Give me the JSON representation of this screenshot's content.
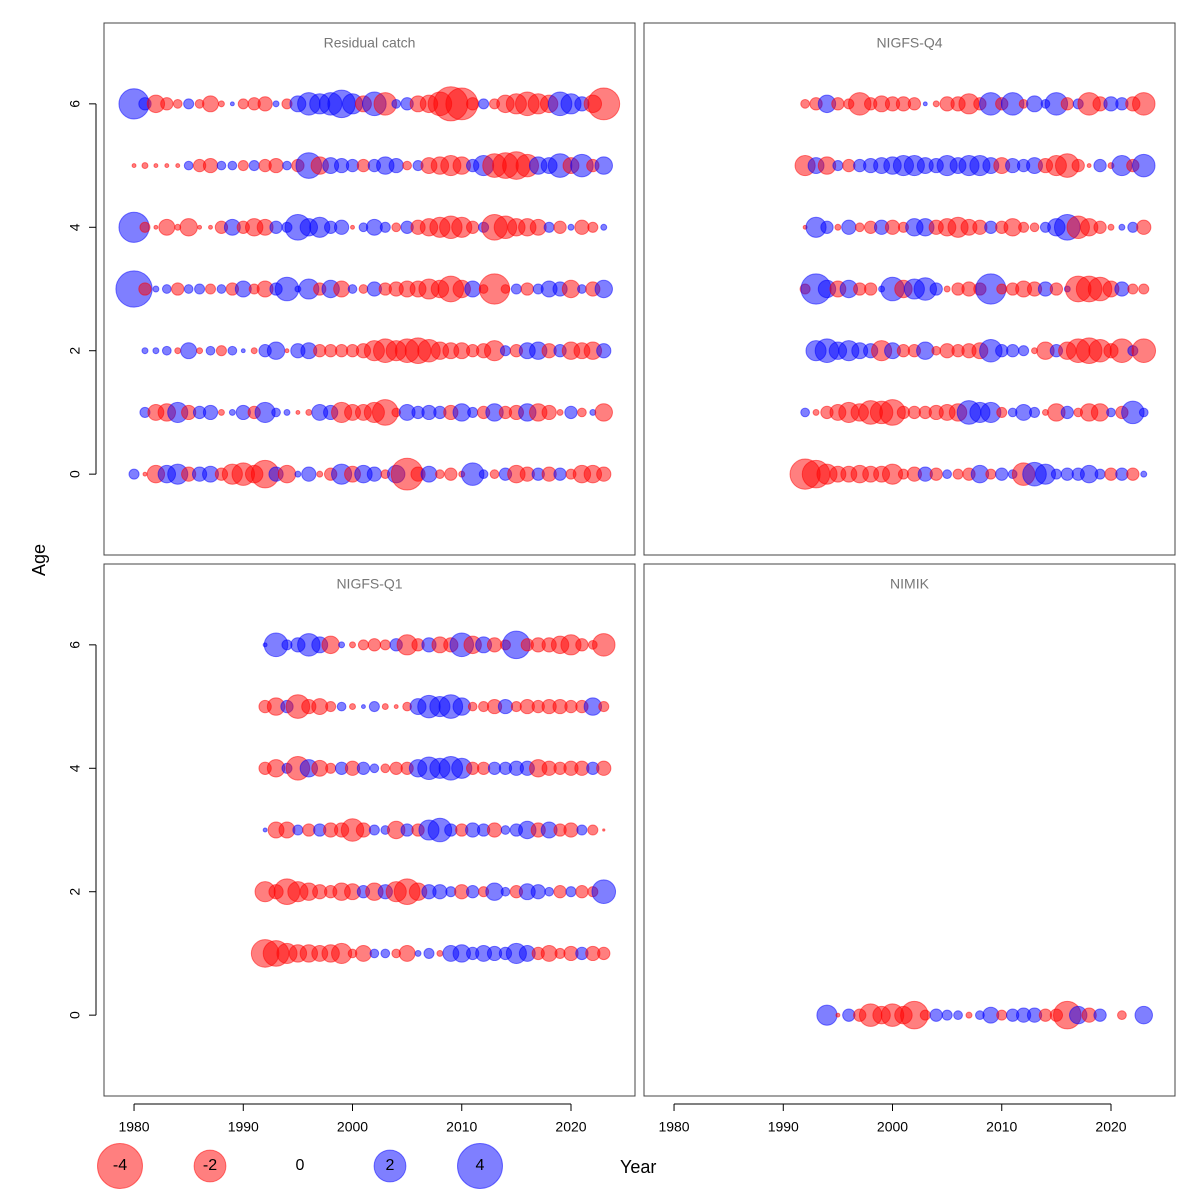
{
  "chart_data": [
    {
      "type": "bubble",
      "title": "Residual catch",
      "x": [
        1980,
        1981,
        1982,
        1983,
        1984,
        1985,
        1986,
        1987,
        1988,
        1989,
        1990,
        1991,
        1992,
        1993,
        1994,
        1995,
        1996,
        1997,
        1998,
        1999,
        2000,
        2001,
        2002,
        2003,
        2004,
        2005,
        2006,
        2007,
        2008,
        2009,
        2010,
        2011,
        2012,
        2013,
        2014,
        2015,
        2016,
        2017,
        2018,
        2019,
        2020,
        2021,
        2022,
        2023
      ],
      "y": [
        0,
        1,
        2,
        3,
        4,
        5,
        6
      ],
      "values": [
        [
          0.2,
          -0.03,
          -0.6,
          0.6,
          0.8,
          -0.4,
          0.4,
          0.5,
          -0.3,
          -0.8,
          -1.0,
          -0.6,
          -1.5,
          0.4,
          -0.6,
          0.07,
          0.4,
          -0.07,
          -0.3,
          0.8,
          -0.5,
          0.6,
          0.4,
          -0.15,
          0.6,
          -2.0,
          -0.4,
          0.5,
          -0.15,
          -0.3,
          -0.07,
          1.0,
          0.15,
          -0.15,
          0.3,
          -0.6,
          -0.4,
          0.3,
          -0.4,
          0.3,
          -0.2,
          -0.6,
          -0.6,
          -0.4
        ],
        [
          null,
          0.2,
          -0.5,
          -0.6,
          0.8,
          -0.4,
          0.3,
          0.4,
          -0.07,
          0.07,
          0.4,
          -0.3,
          0.8,
          0.15,
          0.07,
          -0.03,
          -0.07,
          0.5,
          0.4,
          -0.8,
          -0.5,
          -0.5,
          -0.8,
          -1.3,
          -0.15,
          0.5,
          0.3,
          0.4,
          0.3,
          -0.4,
          0.6,
          0.2,
          -0.3,
          0.6,
          -0.3,
          -0.4,
          0.6,
          -0.6,
          -0.4,
          -0.07,
          0.3,
          -0.15,
          0.07,
          -0.6
        ],
        [
          null,
          0.07,
          0.07,
          0.15,
          -0.07,
          0.5,
          -0.07,
          0.15,
          -0.2,
          0.15,
          0.03,
          -0.07,
          0.3,
          0.6,
          -0.03,
          0.4,
          0.5,
          -0.3,
          -0.3,
          -0.3,
          -0.3,
          -0.4,
          -0.8,
          -1.1,
          -0.8,
          -1.1,
          -1.3,
          -1.0,
          -0.6,
          -0.5,
          -0.5,
          -0.3,
          -0.4,
          -0.8,
          0.2,
          -0.3,
          0.5,
          0.6,
          -0.4,
          0.3,
          -0.6,
          -0.5,
          -0.6,
          0.4
        ],
        [
          2.6,
          -0.3,
          0.07,
          0.15,
          -0.3,
          0.15,
          0.2,
          -0.2,
          0.15,
          -0.3,
          0.5,
          -0.2,
          -0.5,
          0.3,
          1.1,
          0.07,
          0.8,
          -0.3,
          0.6,
          -0.5,
          0.15,
          -0.15,
          0.4,
          -0.3,
          -0.4,
          -0.5,
          -0.5,
          -0.8,
          -0.6,
          -1.3,
          -0.6,
          0.5,
          -0.15,
          -1.8,
          -0.15,
          0.2,
          -0.3,
          0.2,
          0.5,
          0.4,
          -0.6,
          0.15,
          -0.4,
          0.6
        ],
        [
          1.8,
          -0.2,
          -0.03,
          -0.5,
          -0.07,
          -0.6,
          -0.03,
          -0.03,
          -0.3,
          0.5,
          -0.3,
          -0.6,
          -0.5,
          0.3,
          0.2,
          1.3,
          0.6,
          0.8,
          0.3,
          0.4,
          -0.03,
          0.15,
          0.5,
          0.2,
          -0.15,
          0.3,
          -0.4,
          -0.6,
          -0.8,
          -1.0,
          -0.8,
          -0.3,
          0.2,
          -1.3,
          -1.0,
          -0.6,
          -0.6,
          -0.5,
          0.2,
          -0.3,
          0.07,
          -0.4,
          -0.2,
          0.07
        ],
        [
          -0.03,
          -0.07,
          -0.03,
          -0.03,
          -0.03,
          0.15,
          -0.3,
          -0.4,
          0.15,
          0.15,
          -0.2,
          0.2,
          -0.3,
          -0.4,
          0.15,
          -0.3,
          1.3,
          -0.6,
          0.5,
          0.4,
          0.3,
          -0.3,
          0.3,
          0.6,
          0.4,
          -0.15,
          0.2,
          -0.5,
          -0.6,
          -0.8,
          -0.6,
          0.3,
          0.8,
          -1.1,
          -1.3,
          -1.5,
          -1.0,
          0.6,
          0.5,
          1.1,
          -0.5,
          1.0,
          -0.3,
          0.6
        ],
        [
          1.8,
          0.3,
          -0.6,
          -0.3,
          -0.15,
          0.2,
          -0.15,
          -0.5,
          -0.07,
          0.03,
          -0.2,
          -0.3,
          -0.4,
          0.07,
          -0.2,
          0.5,
          1.0,
          0.8,
          1.0,
          1.5,
          0.8,
          -0.5,
          1.1,
          -1.0,
          0.15,
          0.3,
          -0.5,
          -0.6,
          -1.1,
          -2.3,
          -2.0,
          -0.3,
          0.2,
          -0.2,
          -0.6,
          -0.8,
          -1.1,
          -0.8,
          -0.6,
          1.1,
          0.8,
          0.4,
          -0.6,
          -2.0
        ]
      ],
      "xlim": [
        1977.25,
        2025.86
      ],
      "ylim": [
        -1.31,
        7.31
      ],
      "yticks": [
        0,
        2,
        4,
        6
      ]
    },
    {
      "type": "bubble",
      "title": "NIGFS-Q4",
      "x": [
        1992,
        1993,
        1994,
        1995,
        1996,
        1997,
        1998,
        1999,
        2000,
        2001,
        2002,
        2003,
        2004,
        2005,
        2006,
        2007,
        2008,
        2009,
        2010,
        2011,
        2012,
        2013,
        2014,
        2015,
        2016,
        2017,
        2018,
        2019,
        2020,
        2021,
        2022,
        2023
      ],
      "y": [
        0,
        1,
        2,
        3,
        4,
        5,
        6
      ],
      "values": [
        [
          -1.8,
          -1.5,
          -0.8,
          -0.5,
          -0.5,
          -0.6,
          -0.5,
          -0.5,
          -0.8,
          -0.2,
          -0.4,
          0.4,
          -0.3,
          0.15,
          -0.2,
          -0.3,
          0.6,
          -0.2,
          0.3,
          0.15,
          -1.0,
          1.1,
          0.8,
          0.2,
          0.3,
          0.3,
          0.6,
          0.2,
          -0.3,
          0.3,
          -0.3,
          0.07
        ],
        [
          0.15,
          -0.07,
          -0.3,
          -0.5,
          -0.8,
          -0.6,
          -1.1,
          -1.0,
          -1.3,
          -0.3,
          -0.3,
          -0.3,
          -0.4,
          -0.5,
          -0.6,
          1.1,
          0.8,
          0.8,
          -0.2,
          0.15,
          0.5,
          0.2,
          -0.07,
          -0.6,
          0.3,
          -0.15,
          -0.6,
          -0.6,
          0.15,
          -0.3,
          1.0,
          0.15
        ],
        [
          null,
          0.8,
          1.1,
          0.6,
          0.8,
          0.5,
          0.4,
          -0.8,
          0.5,
          -0.3,
          -0.3,
          0.6,
          -0.15,
          -0.4,
          -0.3,
          -0.4,
          -0.5,
          1.0,
          0.3,
          0.3,
          0.2,
          -0.07,
          -0.6,
          0.3,
          -0.6,
          -1.1,
          -1.3,
          -1.0,
          -0.4,
          -1.1,
          0.2,
          -1.1
        ],
        [
          -0.2,
          1.8,
          0.6,
          -0.5,
          0.6,
          -0.3,
          -0.3,
          0.07,
          1.1,
          -0.6,
          0.8,
          1.0,
          0.3,
          -0.07,
          -0.3,
          -0.4,
          -0.3,
          1.8,
          -0.2,
          -0.3,
          -0.5,
          -0.4,
          0.4,
          -0.3,
          0.07,
          -1.3,
          -1.3,
          -1.1,
          -0.5,
          0.4,
          -0.2,
          -0.2
        ],
        [
          -0.03,
          0.8,
          0.3,
          -0.07,
          0.4,
          -0.15,
          -0.3,
          0.4,
          -0.4,
          -0.2,
          0.6,
          0.6,
          -0.4,
          -0.6,
          -0.8,
          -0.5,
          -0.4,
          0.3,
          -0.3,
          -0.6,
          -0.2,
          -0.15,
          0.2,
          0.6,
          1.3,
          -1.0,
          -0.6,
          -0.3,
          -0.07,
          0.07,
          0.2,
          -0.4
        ],
        [
          -0.8,
          0.5,
          -0.6,
          0.2,
          -0.3,
          0.3,
          0.4,
          0.5,
          0.6,
          0.8,
          0.8,
          0.5,
          0.4,
          0.8,
          0.5,
          0.8,
          0.8,
          0.5,
          -0.5,
          0.4,
          0.3,
          0.5,
          -0.4,
          -0.8,
          -1.1,
          -0.3,
          -0.03,
          0.3,
          -0.07,
          0.8,
          -0.3,
          1.0
        ],
        [
          -0.15,
          -0.3,
          0.6,
          -0.3,
          -0.2,
          -1.0,
          -0.3,
          -0.5,
          -0.4,
          -0.4,
          -0.3,
          0.03,
          -0.07,
          -0.4,
          -0.4,
          -0.8,
          -0.3,
          1.0,
          -0.3,
          1.0,
          -0.15,
          0.5,
          0.15,
          1.0,
          -0.3,
          0.2,
          -1.0,
          -0.4,
          0.4,
          0.3,
          -0.4,
          -1.0
        ]
      ],
      "xlim": [
        1977.25,
        2025.86
      ],
      "ylim": [
        -1.31,
        7.31
      ]
    },
    {
      "type": "bubble",
      "title": "NIGFS-Q1",
      "x": [
        1992,
        1993,
        1994,
        1995,
        1996,
        1997,
        1998,
        1999,
        2000,
        2001,
        2002,
        2003,
        2004,
        2005,
        2006,
        2007,
        2008,
        2009,
        2010,
        2011,
        2012,
        2013,
        2014,
        2015,
        2016,
        2017,
        2018,
        2019,
        2020,
        2021,
        2022,
        2023
      ],
      "y": [
        1,
        2,
        3,
        4,
        5,
        6
      ],
      "values": [
        [
          -1.5,
          -1.3,
          -0.8,
          -0.6,
          -0.6,
          -0.5,
          -0.6,
          -0.8,
          -0.15,
          -0.5,
          0.15,
          0.15,
          -0.15,
          -0.5,
          0.07,
          0.2,
          -0.07,
          0.5,
          0.6,
          0.3,
          0.5,
          0.4,
          0.3,
          0.8,
          0.5,
          -0.3,
          -0.5,
          -0.2,
          -0.4,
          0.3,
          -0.4,
          -0.3
        ],
        [
          -0.8,
          -0.4,
          -1.3,
          -0.8,
          -0.6,
          -0.4,
          -0.3,
          -0.6,
          -0.5,
          0.3,
          -0.6,
          0.4,
          -0.8,
          -1.3,
          -0.6,
          0.4,
          0.4,
          0.2,
          -0.4,
          0.3,
          -0.2,
          0.6,
          0.15,
          -0.3,
          0.5,
          0.4,
          0.15,
          -0.3,
          0.2,
          -0.3,
          -0.2,
          1.1
        ],
        [
          0.03,
          -0.5,
          -0.5,
          0.2,
          -0.3,
          0.3,
          -0.4,
          -0.4,
          -1.0,
          -0.4,
          0.2,
          0.15,
          -0.6,
          0.3,
          -0.3,
          0.8,
          1.1,
          0.3,
          -0.3,
          0.4,
          0.3,
          -0.4,
          0.15,
          0.3,
          0.6,
          -0.4,
          0.5,
          -0.3,
          -0.4,
          0.2,
          -0.2,
          -0.01
        ],
        [
          -0.3,
          -0.6,
          0.2,
          -1.1,
          0.6,
          -0.5,
          -0.2,
          0.3,
          -0.4,
          0.3,
          0.15,
          -0.15,
          -0.3,
          -0.3,
          0.6,
          1.0,
          0.8,
          1.1,
          0.8,
          -0.3,
          -0.3,
          0.3,
          0.3,
          0.4,
          0.4,
          -0.6,
          -0.4,
          -0.3,
          -0.4,
          -0.4,
          0.3,
          -0.4
        ],
        [
          -0.3,
          -0.6,
          0.3,
          -1.1,
          -0.4,
          -0.5,
          -0.2,
          0.15,
          -0.07,
          0.03,
          0.2,
          -0.07,
          -0.03,
          -0.15,
          0.5,
          1.0,
          0.8,
          1.1,
          0.6,
          -0.15,
          -0.2,
          -0.4,
          0.4,
          -0.2,
          -0.4,
          -0.3,
          -0.4,
          -0.4,
          -0.3,
          -0.3,
          0.6,
          -0.2
        ],
        [
          0.03,
          1.1,
          0.2,
          0.4,
          1.0,
          0.5,
          -0.6,
          0.07,
          -0.07,
          -0.2,
          -0.3,
          -0.2,
          0.3,
          -0.8,
          -0.3,
          0.4,
          -0.5,
          -0.4,
          1.1,
          -0.6,
          0.5,
          -0.4,
          -0.2,
          1.5,
          -0.3,
          -0.4,
          -0.4,
          -0.6,
          -0.8,
          -0.3,
          -0.15,
          -1.0
        ]
      ],
      "xlim": [
        1977.25,
        2025.86
      ],
      "ylim": [
        -1.31,
        7.31
      ],
      "xticks": [
        1980,
        1990,
        2000,
        2010,
        2020
      ],
      "yticks": [
        0,
        2,
        4,
        6
      ]
    },
    {
      "type": "bubble",
      "title": "NIMIK",
      "x": [
        1994,
        1995,
        1996,
        1997,
        1998,
        1999,
        2000,
        2001,
        2002,
        2003,
        2004,
        2005,
        2006,
        2007,
        2008,
        2009,
        2010,
        2011,
        2012,
        2013,
        2014,
        2015,
        2016,
        2017,
        2018,
        2019,
        2020,
        2021,
        2022,
        2023
      ],
      "y": [
        0
      ],
      "values": [
        [
          0.8,
          -0.03,
          0.3,
          -0.3,
          -1.0,
          -0.6,
          -1.0,
          -0.6,
          -1.5,
          -0.2,
          0.3,
          0.2,
          0.15,
          -0.07,
          0.15,
          0.5,
          -0.2,
          0.3,
          0.4,
          0.4,
          -0.3,
          -0.3,
          -1.5,
          0.6,
          -0.4,
          0.3,
          null,
          -0.15,
          null,
          0.6
        ]
      ],
      "xlim": [
        1977.25,
        2025.86
      ],
      "ylim": [
        -1.31,
        7.31
      ],
      "xticks": [
        1980,
        1990,
        2000,
        2010,
        2020
      ]
    }
  ],
  "x_label": "Year",
  "y_label": "Age",
  "legend": {
    "values": [
      -4,
      -2,
      0,
      2,
      4
    ]
  },
  "colors": {
    "positive": "#0000ff",
    "negative": "#ff0000"
  },
  "opacity": 0.5
}
